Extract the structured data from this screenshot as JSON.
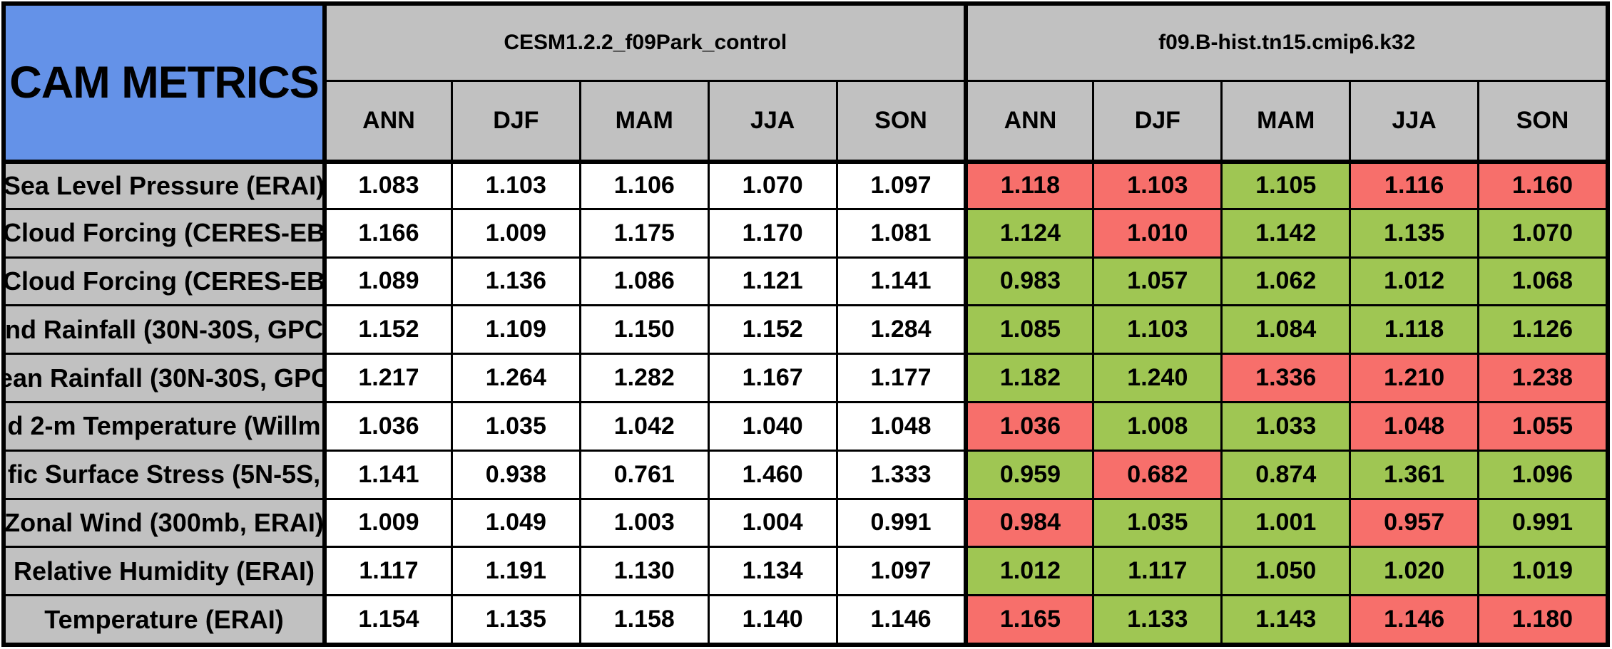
{
  "colors": {
    "title_bg": "#6492e8",
    "header_bg": "#c1c1c1",
    "border": "#000000",
    "white_cell": "#ffffff",
    "red_cell": "#f76f6b",
    "green_cell": "#9fc653"
  },
  "chart_data": {
    "type": "table",
    "title": "CAM METRICS",
    "groups": [
      {
        "name": "CESM1.2.2_f09Park_control",
        "seasons": [
          "ANN",
          "DJF",
          "MAM",
          "JJA",
          "SON"
        ]
      },
      {
        "name": "f09.B-hist.tn15.cmip6.k32",
        "seasons": [
          "ANN",
          "DJF",
          "MAM",
          "JJA",
          "SON"
        ]
      }
    ],
    "cell_color_legend": {
      "white": "control run value",
      "green": "experiment value highlighted green",
      "red": "experiment value highlighted red"
    },
    "rows": [
      {
        "label": "Sea Level Pressure (ERAI)",
        "control_values": [
          "1.083",
          "1.103",
          "1.106",
          "1.070",
          "1.097"
        ],
        "experiment_values": [
          "1.118",
          "1.103",
          "1.105",
          "1.116",
          "1.160"
        ],
        "experiment_colors": [
          "red",
          "red",
          "green",
          "red",
          "red"
        ]
      },
      {
        "label": "Cloud Forcing (CERES-EB",
        "control_values": [
          "1.166",
          "1.009",
          "1.175",
          "1.170",
          "1.081"
        ],
        "experiment_values": [
          "1.124",
          "1.010",
          "1.142",
          "1.135",
          "1.070"
        ],
        "experiment_colors": [
          "green",
          "red",
          "green",
          "green",
          "green"
        ]
      },
      {
        "label": "Cloud Forcing (CERES-EB",
        "control_values": [
          "1.089",
          "1.136",
          "1.086",
          "1.121",
          "1.141"
        ],
        "experiment_values": [
          "0.983",
          "1.057",
          "1.062",
          "1.012",
          "1.068"
        ],
        "experiment_colors": [
          "green",
          "green",
          "green",
          "green",
          "green"
        ]
      },
      {
        "label": "nd Rainfall (30N-30S, GPC",
        "control_values": [
          "1.152",
          "1.109",
          "1.150",
          "1.152",
          "1.284"
        ],
        "experiment_values": [
          "1.085",
          "1.103",
          "1.084",
          "1.118",
          "1.126"
        ],
        "experiment_colors": [
          "green",
          "green",
          "green",
          "green",
          "green"
        ]
      },
      {
        "label": "ean Rainfall (30N-30S, GPC",
        "control_values": [
          "1.217",
          "1.264",
          "1.282",
          "1.167",
          "1.177"
        ],
        "experiment_values": [
          "1.182",
          "1.240",
          "1.336",
          "1.210",
          "1.238"
        ],
        "experiment_colors": [
          "green",
          "green",
          "red",
          "red",
          "red"
        ]
      },
      {
        "label": "d 2-m Temperature (Willm",
        "control_values": [
          "1.036",
          "1.035",
          "1.042",
          "1.040",
          "1.048"
        ],
        "experiment_values": [
          "1.036",
          "1.008",
          "1.033",
          "1.048",
          "1.055"
        ],
        "experiment_colors": [
          "red",
          "green",
          "green",
          "red",
          "red"
        ]
      },
      {
        "label": "fic Surface Stress (5N-5S,",
        "control_values": [
          "1.141",
          "0.938",
          "0.761",
          "1.460",
          "1.333"
        ],
        "experiment_values": [
          "0.959",
          "0.682",
          "0.874",
          "1.361",
          "1.096"
        ],
        "experiment_colors": [
          "green",
          "red",
          "green",
          "green",
          "green"
        ]
      },
      {
        "label": "Zonal Wind (300mb, ERAI)",
        "control_values": [
          "1.009",
          "1.049",
          "1.003",
          "1.004",
          "0.991"
        ],
        "experiment_values": [
          "0.984",
          "1.035",
          "1.001",
          "0.957",
          "0.991"
        ],
        "experiment_colors": [
          "red",
          "green",
          "green",
          "red",
          "green"
        ]
      },
      {
        "label": "Relative Humidity (ERAI)",
        "control_values": [
          "1.117",
          "1.191",
          "1.130",
          "1.134",
          "1.097"
        ],
        "experiment_values": [
          "1.012",
          "1.117",
          "1.050",
          "1.020",
          "1.019"
        ],
        "experiment_colors": [
          "green",
          "green",
          "green",
          "green",
          "green"
        ]
      },
      {
        "label": "Temperature (ERAI)",
        "control_values": [
          "1.154",
          "1.135",
          "1.158",
          "1.140",
          "1.146"
        ],
        "experiment_values": [
          "1.165",
          "1.133",
          "1.143",
          "1.146",
          "1.180"
        ],
        "experiment_colors": [
          "red",
          "green",
          "green",
          "red",
          "red"
        ]
      }
    ]
  }
}
